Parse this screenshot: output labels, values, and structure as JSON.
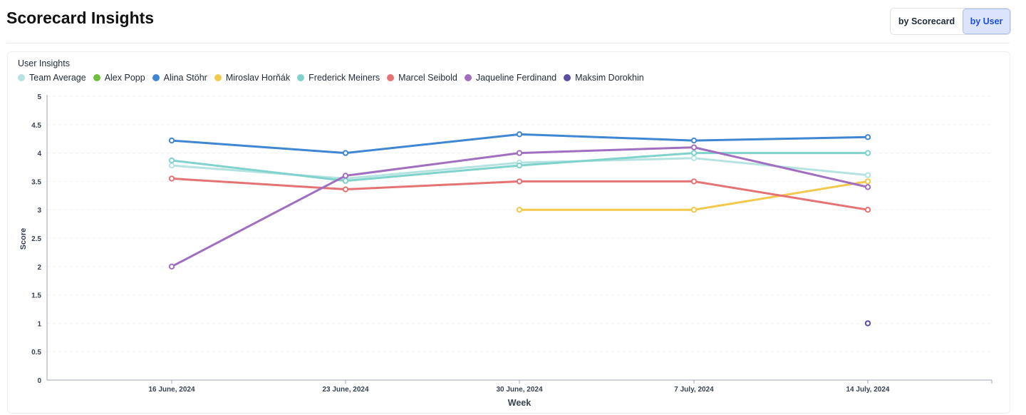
{
  "header": {
    "title": "Scorecard Insights",
    "toggle": {
      "by_scorecard": "by Scorecard",
      "by_user": "by User",
      "selected": "by User"
    }
  },
  "card": {
    "title": "User Insights"
  },
  "colors": {
    "accent": "#1e4fd8"
  },
  "chart_data": {
    "type": "line",
    "title": "",
    "xlabel": "Week",
    "ylabel": "Score",
    "ylim": [
      0,
      5
    ],
    "yticks": [
      "0",
      "0.5",
      "1",
      "1.5",
      "2",
      "2.5",
      "3",
      "3.5",
      "4",
      "4.5",
      "5"
    ],
    "categories": [
      "16 June, 2024",
      "23 June, 2024",
      "30 June, 2024",
      "7 July, 2024",
      "14 July, 2024"
    ],
    "grid": "horizontal dashed",
    "legend_position": "top-left",
    "series": [
      {
        "name": "Team Average",
        "color": "#b5e3e1",
        "values": [
          3.78,
          3.55,
          3.83,
          3.91,
          3.61
        ]
      },
      {
        "name": "Alex Popp",
        "color": "#6fbf3a",
        "values": [
          null,
          null,
          null,
          null,
          null
        ]
      },
      {
        "name": "Alina Stöhr",
        "color": "#3f87d3",
        "values": [
          4.22,
          4.0,
          4.33,
          4.22,
          4.28
        ]
      },
      {
        "name": "Miroslav Horňák",
        "color": "#f2c94c",
        "values": [
          null,
          null,
          3.0,
          3.0,
          3.5
        ]
      },
      {
        "name": "Frederick Meiners",
        "color": "#7fd3cc",
        "values": [
          3.87,
          3.51,
          3.78,
          4.0,
          4.0
        ]
      },
      {
        "name": "Marcel Seibold",
        "color": "#e57373",
        "values": [
          3.55,
          3.36,
          3.5,
          3.5,
          3.0
        ]
      },
      {
        "name": "Jaqueline Ferdinand",
        "color": "#a06fbf",
        "values": [
          2.0,
          3.6,
          4.0,
          4.1,
          3.4
        ]
      },
      {
        "name": "Maksim Dorokhin",
        "color": "#5b4fa0",
        "values": [
          null,
          null,
          null,
          null,
          1.0
        ]
      }
    ]
  }
}
